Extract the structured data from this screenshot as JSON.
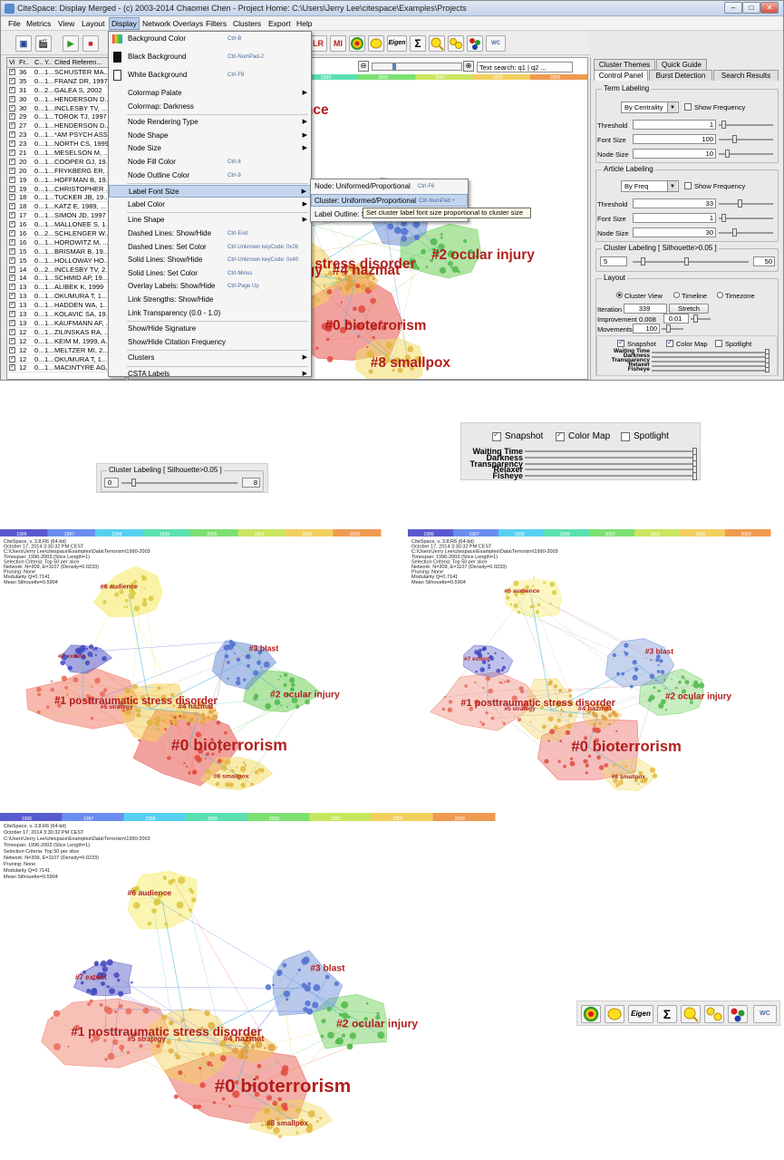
{
  "window": {
    "title": "CiteSpace: Display Merged - (c) 2003-2014 Chaomei Chen - Project Home: C:\\Users\\Jerry Lee\\citespace\\Examples\\Projects"
  },
  "menubar": [
    "File",
    "Metrics",
    "View",
    "Layout",
    "Display",
    "Network Overlays",
    "Filters",
    "Clusters",
    "Export",
    "Help"
  ],
  "toolbar": {
    "buttons": [
      "LR",
      "MI",
      "Eigen",
      "Σ",
      "WC"
    ],
    "text_search": "Text search: q1 | q2 ..."
  },
  "table": {
    "headers": [
      "Vi",
      "Fr..",
      "C..",
      "Y..",
      "Cited Referen..."
    ],
    "rows": [
      [
        "36",
        "0...",
        "1...",
        "SCHUSTER MA..."
      ],
      [
        "35",
        "0...",
        "1...",
        "FRANZ DR, 1997"
      ],
      [
        "31",
        "0...",
        "2...",
        "GALEA S, 2002"
      ],
      [
        "30",
        "0...",
        "1...",
        "HENDERSON D..."
      ],
      [
        "30",
        "0...",
        "1...",
        "INCLESBY TV, ..."
      ],
      [
        "29",
        "0...",
        "1...",
        "TOROK TJ, 1997"
      ],
      [
        "27",
        "0...",
        "1...",
        "HENDERSON D..."
      ],
      [
        "23",
        "0...",
        "1...",
        "*AM PSYCH ASS..."
      ],
      [
        "23",
        "0...",
        "1...",
        "NORTH CS, 1999"
      ],
      [
        "21",
        "0...",
        "1...",
        "MESELSON M, ..."
      ],
      [
        "20",
        "0...",
        "1...",
        "COOPER GJ, 19..."
      ],
      [
        "20",
        "0...",
        "1...",
        "FRYKBERG ER, ..."
      ],
      [
        "19",
        "0...",
        "1...",
        "HOFFMAN B, 19..."
      ],
      [
        "19",
        "0...",
        "1...",
        "CHRISTOPHER ..."
      ],
      [
        "18",
        "0...",
        "1...",
        "TUCKER JB, 19..."
      ],
      [
        "18",
        "0...",
        "1...",
        "KATZ E, 1989, ..."
      ],
      [
        "17",
        "0...",
        "1...",
        "SIMON JD, 1997"
      ],
      [
        "16",
        "0...",
        "1...",
        "MALLONEE S, 1..."
      ],
      [
        "16",
        "0...",
        "2...",
        "SCHLENGER W..."
      ],
      [
        "16",
        "0...",
        "1...",
        "HOROWITZ M, ..."
      ],
      [
        "15",
        "0...",
        "1...",
        "BRISMAR B, 19..."
      ],
      [
        "15",
        "0...",
        "1...",
        "HOLLOWAY HO..."
      ],
      [
        "14",
        "0...",
        "2...",
        "INCLESBY TV, 2..."
      ],
      [
        "14",
        "0...",
        "1...",
        "SCHMID AP, 19..."
      ],
      [
        "13",
        "0...",
        "1...",
        "ALIBEK K, 1999"
      ],
      [
        "13",
        "0...",
        "1...",
        "OKUMURA T, 1..."
      ],
      [
        "13",
        "0...",
        "1...",
        "HADDEN WA, 1..."
      ],
      [
        "13",
        "0...",
        "1...",
        "KOLAVIC SA, 19..."
      ],
      [
        "13",
        "0...",
        "1...",
        "KAUFMANN AF, ..."
      ],
      [
        "12",
        "0...",
        "1...",
        "ZILINSKAS RA, ..."
      ],
      [
        "12",
        "0...",
        "1...",
        "KEIM M, 1999, A..."
      ],
      [
        "12",
        "0...",
        "1...",
        "MELTZER MI, 2..."
      ],
      [
        "12",
        "0...",
        "1...",
        "OKUMURA T, 1..."
      ],
      [
        "12",
        "0...",
        "1...",
        "MACINTYRE AG, 2000"
      ]
    ]
  },
  "display_menu": {
    "items": [
      {
        "label": "Background Color",
        "key": "Ctrl-B",
        "arrow": ""
      },
      {
        "label": "Black Background",
        "key": "Ctrl-NumPad-2",
        "arrow": ""
      },
      {
        "label": "White Background",
        "key": "Ctrl-F8",
        "arrow": ""
      },
      {
        "label": "Colormap Palate",
        "key": "",
        "arrow": "▶"
      },
      {
        "label": "Colormap: Darkness",
        "key": "",
        "arrow": ""
      },
      {
        "label": "Node Rendering Type",
        "key": "",
        "arrow": "▶"
      },
      {
        "label": "Node Shape",
        "key": "",
        "arrow": "▶"
      },
      {
        "label": "Node Size",
        "key": "",
        "arrow": "▶"
      },
      {
        "label": "Node Fill Color",
        "key": "Ctrl-8",
        "arrow": ""
      },
      {
        "label": "Node Outline Color",
        "key": "Ctrl-9",
        "arrow": ""
      },
      {
        "label": "Label Font Size",
        "key": "",
        "arrow": "▶"
      },
      {
        "label": "Label Color",
        "key": "",
        "arrow": "▶"
      },
      {
        "label": "Line Shape",
        "key": "",
        "arrow": "▶"
      },
      {
        "label": "Dashed Lines: Show/Hide",
        "key": "Ctrl-End",
        "arrow": ""
      },
      {
        "label": "Dashed Lines: Set Color",
        "key": "Ctrl-Unknown keyCode: 0x2b",
        "arrow": ""
      },
      {
        "label": "Solid Lines: Show/Hide",
        "key": "Ctrl-Unknown keyCode: 0x40",
        "arrow": ""
      },
      {
        "label": "Solid Lines: Set Color",
        "key": "Ctrl-Minus",
        "arrow": ""
      },
      {
        "label": "Overlay Labels: Show/Hide",
        "key": "Ctrl-Page Up",
        "arrow": ""
      },
      {
        "label": "Link Strengths: Show/Hide",
        "key": "",
        "arrow": ""
      },
      {
        "label": "Link Transparency (0.0 - 1.0)",
        "key": "",
        "arrow": ""
      },
      {
        "label": "Show/Hide Signature",
        "key": "",
        "arrow": ""
      },
      {
        "label": "Show/Hide Citation Frequency",
        "key": "",
        "arrow": ""
      },
      {
        "label": "Clusters",
        "key": "",
        "arrow": "▶"
      },
      {
        "label": "CSTA Labels",
        "key": "",
        "arrow": "▶"
      }
    ]
  },
  "submenu": {
    "items": [
      {
        "label": "Node: Uniformed/Proportional",
        "key": "Ctrl-F6"
      },
      {
        "label": "Cluster: Uniformed/Proportional",
        "key": "Ctrl-NumPad +"
      },
      {
        "label": "Label Outline: S",
        "key": ""
      }
    ],
    "tooltip": "Set cluster label font size proportional to cluster size"
  },
  "right_panel": {
    "tabs_top": [
      "Cluster Themes",
      "Quick Guide"
    ],
    "tabs": [
      "Control Panel",
      "Burst Detection",
      "Search Results"
    ],
    "term_labeling": {
      "title": "Term Labeling",
      "mode": "By Centrality",
      "show_frequency": "Show Frequency",
      "threshold_label": "Threshold",
      "threshold": "1",
      "font_size_label": "Font Size",
      "font_size": "100",
      "node_size_label": "Node Size",
      "node_size": "10"
    },
    "article_labeling": {
      "title": "Article Labeling",
      "mode": "By Freq",
      "show_frequency": "Show Frequency",
      "threshold_label": "Threshold",
      "threshold": "33",
      "font_size_label": "Font Size",
      "font_size": "1",
      "node_size_label": "Node Size",
      "node_size": "30"
    },
    "cluster_labeling": {
      "title": "Cluster Labeling [ Silhouette>0.05 ]",
      "min": "5",
      "max": "50"
    },
    "layout": {
      "title": "Layout",
      "views": [
        "Cluster View",
        "Timeline",
        "Timezone"
      ],
      "iteration_label": "Iteration",
      "iteration": "339",
      "stretch": "Stretch",
      "improvement_label": "Improvement",
      "improvement": "0.008",
      "improvement2": "0.01",
      "movements_label": "Movements",
      "movements": "100"
    },
    "options": {
      "snapshot": "Snapshot",
      "colormap": "Color Map",
      "spotlight": "Spotlight"
    },
    "sliders": [
      "Waiting Time",
      "Darkness",
      "Transparency",
      "Relaxer",
      "Fisheye"
    ]
  },
  "zoom_cluster_labeling": {
    "title": "Cluster Labeling [ Silhouette>0.05 ]",
    "min": "0",
    "max": "8"
  },
  "zoom_options": {
    "snapshot": "Snapshot",
    "colormap": "Color Map",
    "spotlight": "Spotlight",
    "sliders": [
      "Waiting Time",
      "Darkness",
      "Transparency",
      "Relaxer",
      "Fisheye"
    ]
  },
  "timeline_years": [
    "1996",
    "1997",
    "1998",
    "1999",
    "2000",
    "2001",
    "2002",
    "2003"
  ],
  "info": [
    "CiteSpace, v. 3.8.R6 (64-bit)",
    "October 17, 2014 3:30:32 PM CEST",
    "C:\\Users\\Jerry Lee\\citespace\\Examples\\Data\\Terrorism\\1990-2003",
    "Timespan: 1996-2003 (Slice Length=1)",
    "Selection Criteria: Top 50 per slice",
    "Network: N=309, E=1107 (Density=0.0233)",
    "Pruning: None",
    "Modularity Q=0.7141",
    "Mean Silhouette=0.5904"
  ],
  "clusters": [
    {
      "id": "#0",
      "label": "bioterrorism"
    },
    {
      "id": "#1",
      "label": "posttraumatic stress disorder"
    },
    {
      "id": "#2",
      "label": "ocular injury"
    },
    {
      "id": "#3",
      "label": "blast"
    },
    {
      "id": "#4",
      "label": "hazmat"
    },
    {
      "id": "#5",
      "label": "strategy"
    },
    {
      "id": "#6",
      "label": "audience"
    },
    {
      "id": "#7",
      "label": "extent"
    },
    {
      "id": "#8",
      "label": "smallpox"
    }
  ],
  "colors": {
    "c0": "#e8554e",
    "c1": "#f07d6a",
    "c2": "#6fcf5a",
    "c3": "#6b8fd8",
    "c4": "#f2c24f",
    "c5": "#f5d25a",
    "c6": "#f6ea5f",
    "c7": "#5a5cc8",
    "c8": "#f3dc6a",
    "label": "#b21f1f"
  }
}
